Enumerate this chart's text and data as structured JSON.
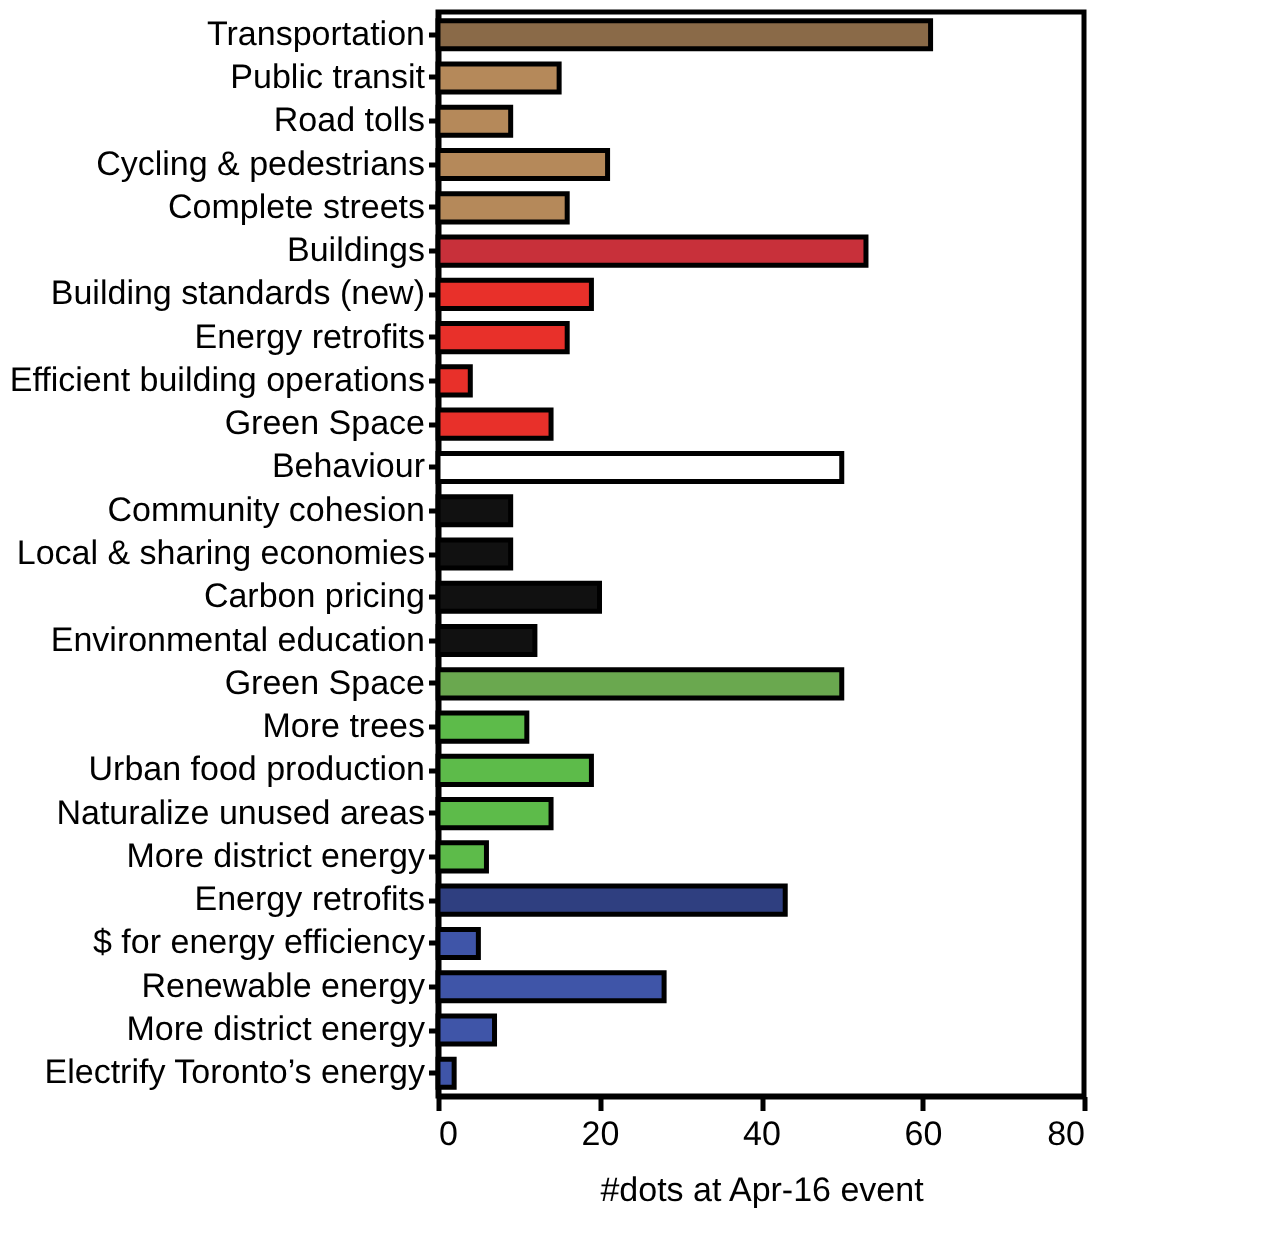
{
  "chart_data": {
    "type": "bar",
    "orientation": "horizontal",
    "xlabel": "#dots at Apr-16 event",
    "categories": [
      "Transportation",
      "Public transit",
      "Road tolls",
      "Cycling & pedestrians",
      "Complete streets",
      "Buildings",
      "Building standards (new)",
      "Energy retrofits",
      "Efficient building operations",
      "Green Space",
      "Behaviour",
      "Community cohesion",
      "Local & sharing economies",
      "Carbon pricing",
      "Environmental education",
      "Green Space",
      "More trees",
      "Urban food production",
      "Naturalize unused areas",
      "More district energy",
      "Energy retrofits",
      "$ for energy efficiency",
      "Renewable energy",
      "More district energy",
      "Electrify Toronto’s energy"
    ],
    "values": [
      61,
      15,
      9,
      21,
      16,
      53,
      19,
      16,
      4,
      14,
      50,
      9,
      9,
      20,
      12,
      50,
      11,
      19,
      14,
      6,
      43,
      5,
      28,
      7,
      2
    ],
    "colors": [
      "#8a6a48",
      "#b5895a",
      "#b5895a",
      "#b5895a",
      "#b5895a",
      "#c8303a",
      "#e8302a",
      "#e8302a",
      "#e8302a",
      "#e8302a",
      "#ffffff",
      "#111111",
      "#111111",
      "#111111",
      "#111111",
      "#6aa84f",
      "#5dbb4a",
      "#5dbb4a",
      "#5dbb4a",
      "#5dbb4a",
      "#2f3f80",
      "#3f55a8",
      "#3f55a8",
      "#3f55a8",
      "#3f55a8"
    ],
    "xlim": [
      0,
      80
    ],
    "xticks": [
      0,
      20,
      40,
      60,
      80
    ],
    "grid": false
  }
}
